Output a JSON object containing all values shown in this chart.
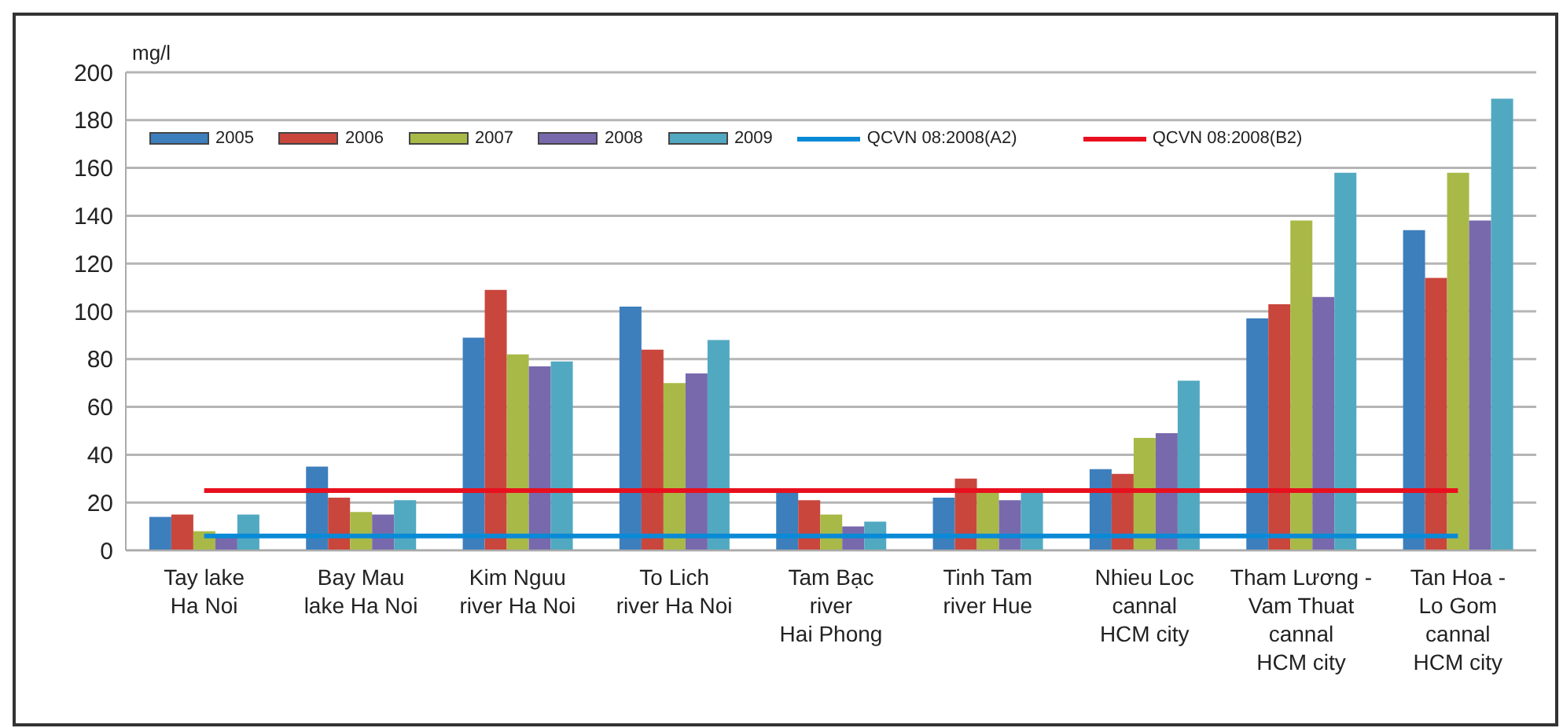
{
  "chart_data": {
    "type": "bar",
    "ylabel": "mg/l",
    "categories": [
      "Tay lake\nHa Noi",
      "Bay Mau\nlake Ha Noi",
      "Kim Nguu\nriver Ha Noi",
      "To Lich\nriver Ha  Noi",
      "Tam Bạc\nriver\nHai Phong",
      "Tinh Tam\nriver Hue",
      "Nhieu Loc\ncannal\nHCM city",
      "Tham Lương -\nVam Thuat\ncannal\nHCM city",
      "Tan Hoa -\nLo Gom\ncannal\nHCM city"
    ],
    "series": [
      {
        "name": "2005",
        "color": "#3d7fbd",
        "values": [
          14,
          35,
          89,
          102,
          24,
          22,
          34,
          97,
          134
        ]
      },
      {
        "name": "2006",
        "color": "#c9463d",
        "values": [
          15,
          22,
          109,
          84,
          21,
          30,
          32,
          103,
          114
        ]
      },
      {
        "name": "2007",
        "color": "#a9b947",
        "values": [
          8,
          16,
          82,
          70,
          15,
          24,
          47,
          138,
          158
        ]
      },
      {
        "name": "2008",
        "color": "#7869ad",
        "values": [
          6,
          15,
          77,
          74,
          10,
          21,
          49,
          106,
          138
        ]
      },
      {
        "name": "2009",
        "color": "#51a9c1",
        "values": [
          15,
          21,
          79,
          88,
          12,
          24,
          71,
          158,
          189
        ]
      },
      {
        "name": "QCVN 08:2008(A2)",
        "type": "line",
        "color": "#0a8ad6",
        "values": [
          6,
          6,
          6,
          6,
          6,
          6,
          6,
          6,
          6
        ]
      },
      {
        "name": "QCVN 08:2008(B2)",
        "type": "line",
        "color": "#e8101e",
        "values": [
          25,
          25,
          25,
          25,
          25,
          25,
          25,
          25,
          25
        ]
      }
    ],
    "marker": "none",
    "ylim": [
      0,
      200
    ],
    "yticks": [
      0,
      20,
      40,
      60,
      80,
      100,
      120,
      140,
      160,
      180,
      200
    ],
    "grid": "y",
    "legend": "top"
  }
}
